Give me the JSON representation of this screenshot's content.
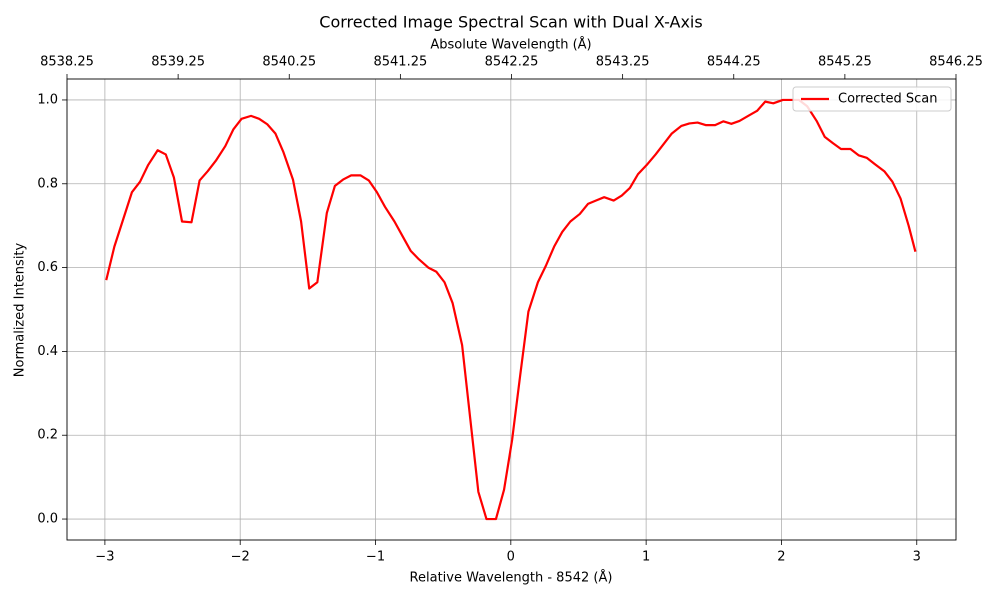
{
  "chart_data": {
    "type": "line",
    "title": "Corrected Image Spectral Scan with Dual X-Axis",
    "xlabel": "Relative Wavelength - 8542 (Å)",
    "ylabel": "Normalized Intensity",
    "x2label": "Absolute Wavelength (Å)",
    "x": [
      -2.99,
      -2.93,
      -2.87,
      -2.8,
      -2.74,
      -2.68,
      -2.61,
      -2.55,
      -2.49,
      -2.43,
      -2.36,
      -2.3,
      -2.24,
      -2.18,
      -2.11,
      -2.05,
      -1.99,
      -1.92,
      -1.86,
      -1.8,
      -1.74,
      -1.68,
      -1.61,
      -1.55,
      -1.49,
      -1.43,
      -1.36,
      -1.3,
      -1.24,
      -1.18,
      -1.11,
      -1.05,
      -0.99,
      -0.93,
      -0.86,
      -0.8,
      -0.74,
      -0.68,
      -0.61,
      -0.55,
      -0.49,
      -0.43,
      -0.36,
      -0.3,
      -0.24,
      -0.18,
      -0.11,
      -0.05,
      0.01,
      0.07,
      0.13,
      0.2,
      0.26,
      0.32,
      0.38,
      0.44,
      0.51,
      0.57,
      0.63,
      0.69,
      0.76,
      0.82,
      0.88,
      0.94,
      1.01,
      1.07,
      1.13,
      1.19,
      1.26,
      1.32,
      1.38,
      1.44,
      1.51,
      1.57,
      1.63,
      1.69,
      1.76,
      1.82,
      1.88,
      1.94,
      2.01,
      2.07,
      2.13,
      2.19,
      2.26,
      2.32,
      2.38,
      2.44,
      2.51,
      2.57,
      2.63,
      2.69,
      2.76,
      2.82,
      2.88,
      2.94,
      2.99
    ],
    "series": [
      {
        "name": "Corrected Scan",
        "color": "#ff0000",
        "values": [
          0.57,
          0.65,
          0.71,
          0.78,
          0.805,
          0.845,
          0.88,
          0.87,
          0.815,
          0.71,
          0.708,
          0.808,
          0.83,
          0.855,
          0.89,
          0.93,
          0.955,
          0.962,
          0.955,
          0.942,
          0.92,
          0.875,
          0.81,
          0.71,
          0.55,
          0.565,
          0.73,
          0.795,
          0.81,
          0.82,
          0.82,
          0.808,
          0.78,
          0.745,
          0.71,
          0.675,
          0.64,
          0.62,
          0.6,
          0.59,
          0.565,
          0.515,
          0.415,
          0.24,
          0.065,
          0.0,
          0.0,
          0.07,
          0.19,
          0.345,
          0.495,
          0.565,
          0.605,
          0.65,
          0.685,
          0.71,
          0.728,
          0.752,
          0.76,
          0.768,
          0.76,
          0.772,
          0.79,
          0.823,
          0.847,
          0.87,
          0.895,
          0.92,
          0.938,
          0.944,
          0.946,
          0.94,
          0.94,
          0.949,
          0.943,
          0.95,
          0.963,
          0.974,
          0.996,
          0.992,
          1.0,
          1.0,
          1.0,
          0.985,
          0.95,
          0.912,
          0.897,
          0.883,
          0.883,
          0.868,
          0.862,
          0.847,
          0.83,
          0.805,
          0.765,
          0.7,
          0.638
        ]
      }
    ],
    "xlim": [
      -3.28,
      3.29
    ],
    "ylim": [
      -0.05,
      1.05
    ],
    "x2lim": [
      8538.25,
      8546.25
    ],
    "xticks": [
      {
        "value": -3,
        "label": "−3"
      },
      {
        "value": -2,
        "label": "−2"
      },
      {
        "value": -1,
        "label": "−1"
      },
      0,
      1,
      2,
      3
    ],
    "yticks": [
      {
        "value": 0,
        "label": "0.0"
      },
      {
        "value": 0.2,
        "label": "0.2"
      },
      {
        "value": 0.4,
        "label": "0.4"
      },
      {
        "value": 0.6,
        "label": "0.6"
      },
      {
        "value": 0.8,
        "label": "0.8"
      },
      {
        "value": 1.0,
        "label": "1.0"
      }
    ],
    "x2ticks": [
      8538.25,
      8539.25,
      8540.25,
      8541.25,
      8542.25,
      8543.25,
      8544.25,
      8545.25,
      8546.25
    ],
    "grid": true,
    "legend": "upper right"
  }
}
